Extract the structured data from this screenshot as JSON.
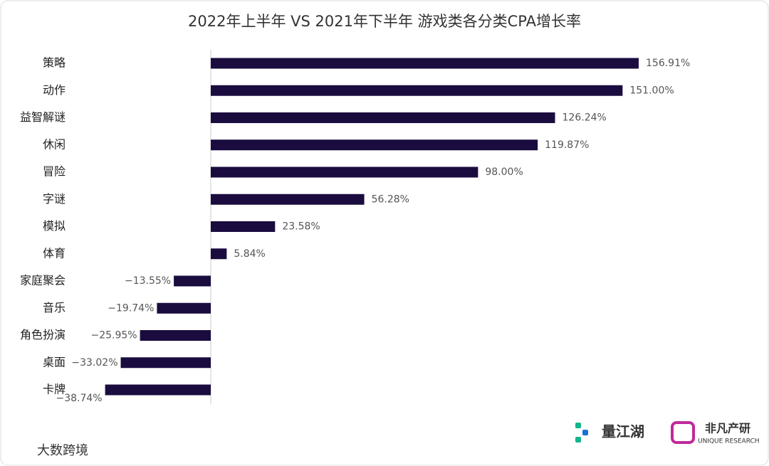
{
  "chart_data": {
    "type": "hbar",
    "title": "2022年上半年 VS 2021年下半年 游戏类各分类CPA增长率",
    "categories": [
      "策略",
      "动作",
      "益智解谜",
      "休闲",
      "冒险",
      "字谜",
      "模拟",
      "体育",
      "家庭聚会",
      "音乐",
      "角色扮演",
      "桌面",
      "卡牌"
    ],
    "values": [
      156.91,
      151.0,
      126.24,
      119.87,
      98.0,
      56.28,
      23.58,
      5.84,
      -13.55,
      -19.74,
      -25.95,
      -33.02,
      -38.74
    ],
    "value_labels": [
      "156.91%",
      "151.00%",
      "126.24%",
      "119.87%",
      "98.00%",
      "56.28%",
      "23.58%",
      "5.84%",
      "−13.55%",
      "−19.74%",
      "−25.95%",
      "−33.02%",
      "−38.74%"
    ],
    "color": "#1b0c3f"
  },
  "branding": {
    "logo_left": "量江湖",
    "logo_right": "非凡产研",
    "logo_right_sub": "UNIQUE RESEARCH",
    "watermark": "大数跨境"
  }
}
